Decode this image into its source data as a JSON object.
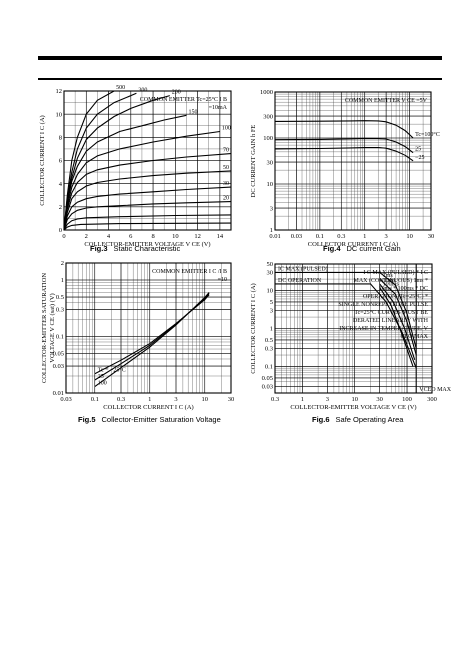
{
  "chart_data": [
    {
      "id": "fig3",
      "type": "line",
      "fig_label": "Fig.3",
      "caption": "Static Characteristic",
      "xlabel": "COLLECTOR-EMITTER VOLTAGE  V",
      "xlabel_sub": "CE",
      "xunit": "(V)",
      "ylabel": "COLLECTOR CURRENT  I",
      "ylabel_sub": "C",
      "yunit": "(A)",
      "xscale": "linear",
      "yscale": "linear",
      "xlim": [
        0,
        15
      ],
      "ylim": [
        0,
        12
      ],
      "xticks": [
        0,
        2,
        4,
        6,
        8,
        10,
        12,
        14
      ],
      "yticks": [
        0,
        2,
        4,
        6,
        8,
        10,
        12
      ],
      "grid": true,
      "series": [
        {
          "name": "500",
          "x": [
            0,
            0.3,
            0.7,
            1.2,
            2,
            3,
            4.5
          ],
          "y": [
            0,
            3,
            6,
            8,
            10,
            11.2,
            12
          ]
        },
        {
          "name": "300",
          "x": [
            0,
            0.3,
            0.7,
            1.2,
            2,
            3,
            4.5,
            6.5
          ],
          "y": [
            0,
            2.7,
            5,
            7,
            8.8,
            10,
            11,
            11.8
          ]
        },
        {
          "name": "200",
          "x": [
            0,
            0.3,
            0.7,
            1.2,
            2,
            3,
            4.5,
            6,
            8,
            9.5
          ],
          "y": [
            0,
            2.5,
            4.5,
            6.2,
            7.8,
            8.8,
            9.8,
            10.5,
            11.2,
            11.6
          ]
        },
        {
          "name": "150",
          "x": [
            0,
            0.3,
            0.7,
            1.2,
            2,
            3,
            5,
            7,
            9,
            11
          ],
          "y": [
            0,
            2.3,
            4.2,
            5.5,
            6.8,
            7.6,
            8.5,
            9,
            9.5,
            9.9
          ]
        },
        {
          "name": "100",
          "x": [
            0,
            0.3,
            0.7,
            1.2,
            2,
            3,
            5,
            8,
            11,
            14
          ],
          "y": [
            0,
            2,
            3.7,
            4.8,
            5.8,
            6.4,
            7,
            7.6,
            8.1,
            8.5
          ]
        },
        {
          "name": "70",
          "x": [
            0,
            0.3,
            0.7,
            1.2,
            2,
            3,
            5,
            8,
            11,
            15
          ],
          "y": [
            0,
            1.8,
            3.2,
            4.1,
            4.8,
            5.2,
            5.6,
            6,
            6.3,
            6.6
          ]
        },
        {
          "name": "50",
          "x": [
            0,
            0.3,
            0.7,
            1.2,
            2,
            3,
            5,
            8,
            11,
            15
          ],
          "y": [
            0,
            1.5,
            2.7,
            3.3,
            3.8,
            4.1,
            4.4,
            4.7,
            4.9,
            5.1
          ]
        },
        {
          "name": "30",
          "x": [
            0,
            0.3,
            0.7,
            1.2,
            2,
            3,
            5,
            8,
            11,
            15
          ],
          "y": [
            0,
            1.2,
            2,
            2.4,
            2.7,
            2.9,
            3.1,
            3.3,
            3.5,
            3.7
          ]
        },
        {
          "name": "20",
          "x": [
            0,
            0.3,
            0.7,
            1.2,
            2,
            3,
            5,
            8,
            11,
            15
          ],
          "y": [
            0,
            0.9,
            1.4,
            1.7,
            1.9,
            2,
            2.1,
            2.25,
            2.35,
            2.45
          ]
        },
        {
          "name": "",
          "x": [
            0,
            0.3,
            0.7,
            1.2,
            2,
            5,
            10,
            15
          ],
          "y": [
            0,
            0.5,
            0.8,
            0.95,
            1.05,
            1.15,
            1.25,
            1.3
          ]
        },
        {
          "name": "",
          "x": [
            0,
            0.3,
            0.7,
            1.5,
            5,
            15
          ],
          "y": [
            0,
            0.25,
            0.4,
            0.48,
            0.55,
            0.6
          ]
        }
      ],
      "annotations": [
        "COMMON",
        "EMITTER",
        "Tc=25°C",
        "I",
        "B",
        "=10mA"
      ]
    },
    {
      "id": "fig4",
      "type": "line",
      "fig_label": "Fig.4",
      "caption": "DC current Gain",
      "xlabel": "COLLECTOR CURRENT  I",
      "xlabel_sub": "C",
      "xunit": "(A)",
      "ylabel": "DC CURRENT GAIN  h",
      "ylabel_sub": "FE",
      "xscale": "log",
      "yscale": "log",
      "xlim": [
        0.01,
        30
      ],
      "ylim": [
        1,
        1000
      ],
      "xticks": [
        0.01,
        0.03,
        0.1,
        0.3,
        1,
        3,
        10,
        30
      ],
      "xticklabels": [
        "0.01",
        "0.03",
        "0.1",
        "0.3",
        "1",
        "3",
        "10",
        "30"
      ],
      "yticks": [
        1,
        3,
        10,
        30,
        100,
        300,
        1000
      ],
      "yticklabels": [
        "1",
        "3",
        "10",
        "30",
        "100",
        "300",
        "1000"
      ],
      "grid": true,
      "series": [
        {
          "name": "Tc=100°C",
          "x": [
            0.01,
            0.1,
            0.5,
            1,
            2,
            3,
            5,
            8,
            12
          ],
          "y": [
            230,
            232,
            235,
            238,
            235,
            225,
            190,
            145,
            100
          ]
        },
        {
          "name": "25",
          "x": [
            0.01,
            0.1,
            0.5,
            1,
            2,
            3,
            5,
            8,
            12
          ],
          "y": [
            92,
            93,
            96,
            98,
            97,
            95,
            82,
            65,
            48
          ]
        },
        {
          "name": "−25",
          "x": [
            0.01,
            0.1,
            0.5,
            1,
            2,
            3,
            5,
            8,
            12
          ],
          "y": [
            58,
            59,
            61,
            62,
            62,
            60,
            52,
            42,
            32
          ]
        }
      ],
      "annotations": [
        "COMMON EMITTER",
        "V",
        "CE",
        "=5V"
      ]
    },
    {
      "id": "fig5",
      "type": "line",
      "fig_label": "Fig.5",
      "caption": "Collector-Emitter Saturation Voltage",
      "xlabel": "COLLECTOR CURRENT  I",
      "xlabel_sub": "C",
      "xunit": "(A)",
      "ylabel": "COLLECTOR-EMITTER SATURATION",
      "ylabel2": "VOLTAGE  V",
      "ylabel2_sub": "CE (sat)",
      "ylabel2_unit": "(V)",
      "xscale": "log",
      "yscale": "log",
      "xlim": [
        0.03,
        30
      ],
      "ylim": [
        0.01,
        2
      ],
      "xticks": [
        0.03,
        0.1,
        0.3,
        1,
        3,
        10,
        30
      ],
      "xticklabels": [
        "0.03",
        "0.1",
        "0.3",
        "1",
        "3",
        "10",
        "30"
      ],
      "yticks": [
        0.01,
        0.03,
        0.05,
        0.1,
        0.3,
        0.5,
        1,
        2
      ],
      "yticklabels": [
        "0.01",
        "0.03",
        "0.05",
        "0.1",
        "0.3",
        "0.5",
        "1",
        "2"
      ],
      "grid": true,
      "series": [
        {
          "name": "Tc = −25°C",
          "x": [
            0.1,
            0.3,
            1,
            3,
            10,
            12
          ],
          "y": [
            0.022,
            0.038,
            0.075,
            0.17,
            0.45,
            0.55
          ]
        },
        {
          "name": "25",
          "x": [
            0.1,
            0.3,
            1,
            3,
            10,
            12
          ],
          "y": [
            0.017,
            0.033,
            0.07,
            0.165,
            0.47,
            0.58
          ]
        },
        {
          "name": "100",
          "x": [
            0.1,
            0.3,
            1,
            3,
            10,
            12
          ],
          "y": [
            0.013,
            0.028,
            0.065,
            0.16,
            0.49,
            0.6
          ]
        }
      ],
      "annotations": [
        "COMMON EMITTER",
        "I",
        "C",
        "/I",
        "B",
        "=10"
      ]
    },
    {
      "id": "fig6",
      "type": "line",
      "fig_label": "Fig.6",
      "caption": "Safe Operating Area",
      "xlabel": "COLLECTOR-EMITTER VOLTAGE  V",
      "xlabel_sub": "CE",
      "xunit": "(V)",
      "ylabel": "COLLECTOR CURRENT  I",
      "ylabel_sub": "C",
      "yunit": "(A)",
      "xscale": "log",
      "yscale": "log",
      "xlim": [
        0.3,
        300
      ],
      "ylim": [
        0.02,
        50
      ],
      "xticks": [
        0.3,
        1,
        3,
        10,
        30,
        100,
        300
      ],
      "xticklabels": [
        "0.3",
        "1",
        "3",
        "10",
        "30",
        "100",
        "300"
      ],
      "yticks": [
        0.03,
        0.05,
        0.1,
        0.3,
        0.5,
        1,
        3,
        5,
        10,
        30,
        50
      ],
      "yticklabels": [
        "0.03",
        "0.05",
        "0.1",
        "0.3",
        "0.5",
        "1",
        "3",
        "5",
        "10",
        "30",
        "50"
      ],
      "grid": true,
      "series": [
        {
          "name": "IC MAX (PULSED)",
          "x": [
            0.3,
            30,
            60,
            100,
            150
          ],
          "y": [
            30,
            30,
            14,
            2.5,
            0.3
          ]
        },
        {
          "name": "1ms",
          "x": [
            30,
            60,
            100,
            150
          ],
          "y": [
            20,
            8,
            1.5,
            0.2
          ]
        },
        {
          "name": "10ms",
          "x": [
            30,
            55,
            90,
            140
          ],
          "y": [
            15,
            5,
            1,
            0.15
          ]
        },
        {
          "name": "100ms",
          "x": [
            30,
            50,
            80,
            130
          ],
          "y": [
            12,
            4,
            0.7,
            0.1
          ]
        },
        {
          "name": "DC OPERATION",
          "x": [
            0.3,
            20,
            40,
            80,
            150
          ],
          "y": [
            15,
            15,
            5,
            0.8,
            0.09
          ]
        },
        {
          "name": "VCEO MAX",
          "x": [
            150,
            150
          ],
          "y": [
            0.02,
            50
          ]
        }
      ],
      "annotations": [
        "I",
        "C",
        " MAX (PULSED) ",
        "*",
        "I",
        "C",
        " MAX (CONTINUOUS)",
        "1ms",
        "*",
        "10ms",
        "*",
        "100ms",
        "*",
        "DC OPERATION",
        "(Tc=25°C)",
        "*",
        " SINGLE NONREPETITIVE",
        "PULSE Tc=25°C",
        "CURVES MUST BE DERATED",
        "LINEARLY WITH INCREASE",
        "IN TEMPERATURE.",
        "V",
        "CEO",
        "MAX"
      ]
    }
  ]
}
